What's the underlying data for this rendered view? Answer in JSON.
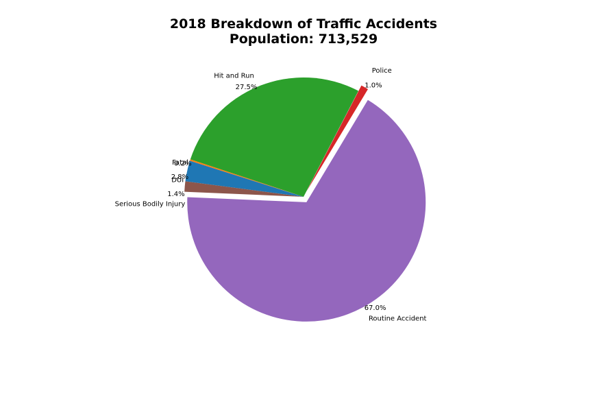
{
  "chart_data": {
    "type": "pie",
    "title": "2018 Breakdown of Traffic Accidents",
    "subtitle": "Population: 713,529",
    "slices": [
      {
        "label": "Police",
        "pct_label": "1.0%",
        "value": 1.0,
        "color": "#d62728",
        "exploded": true
      },
      {
        "label": "Hit and Run",
        "pct_label": "27.5%",
        "value": 27.5,
        "color": "#2ca02c",
        "exploded": false
      },
      {
        "label": "Fatal",
        "pct_label": "0.2%",
        "value": 0.2,
        "color": "#ff7f0e",
        "exploded": false
      },
      {
        "label": "DUI",
        "pct_label": "2.8%",
        "value": 2.8,
        "color": "#1f77b4",
        "exploded": false
      },
      {
        "label": "Serious Bodily Injury",
        "pct_label": "1.4%",
        "value": 1.4,
        "color": "#8c564b",
        "exploded": false
      },
      {
        "label": "Routine Accident",
        "pct_label": "67.0%",
        "value": 67.0,
        "color": "#9467bd",
        "exploded": true
      }
    ]
  }
}
